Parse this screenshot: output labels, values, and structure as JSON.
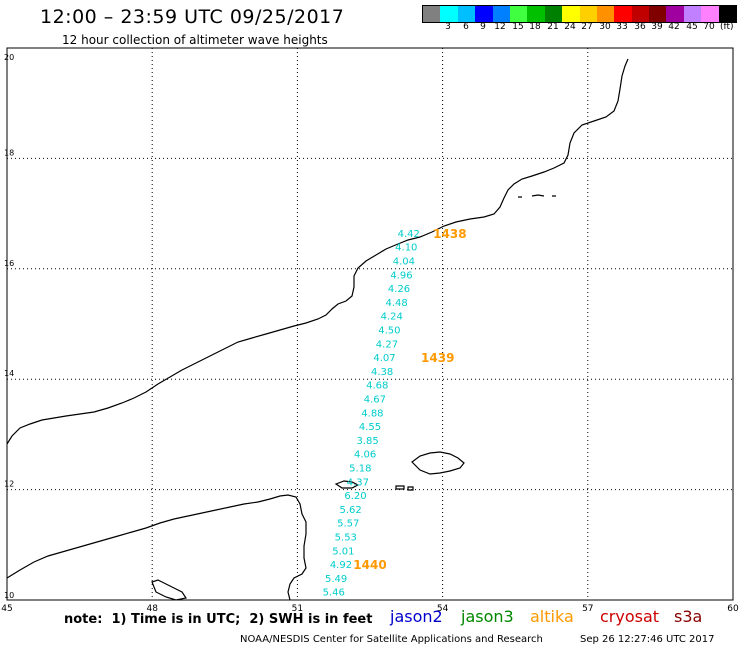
{
  "header": {
    "title": "12:00 – 23:59 UTC 09/25/2017",
    "subtitle": "12 hour collection of altimeter wave heights"
  },
  "scale": {
    "colors": [
      "#808080",
      "#00ffff",
      "#00bfff",
      "#0000ff",
      "#0080ff",
      "#40ff40",
      "#00c000",
      "#008000",
      "#ffff00",
      "#ffd000",
      "#ff9000",
      "#ff0000",
      "#c00000",
      "#800000",
      "#a000a0",
      "#c080ff",
      "#ff80ff",
      "#000000"
    ],
    "labels": [
      "3",
      "6",
      "9",
      "12",
      "15",
      "18",
      "21",
      "24",
      "27",
      "30",
      "33",
      "36",
      "39",
      "42",
      "45",
      "70"
    ],
    "unit": "(ft)"
  },
  "map": {
    "lon_ticks": [
      "45",
      "48",
      "51",
      "54",
      "57",
      "60"
    ],
    "lat_ticks": [
      "10",
      "12",
      "14",
      "16",
      "18",
      "20"
    ],
    "wave_color": "#00cccc",
    "time_color": "#ff9900",
    "wave_heights": [
      {
        "value": "4.42",
        "lon": 53.3,
        "lat": 16.65
      },
      {
        "value": "4.10",
        "lon": 53.25,
        "lat": 16.4
      },
      {
        "value": "4.04",
        "lon": 53.2,
        "lat": 16.15
      },
      {
        "value": "4.96",
        "lon": 53.15,
        "lat": 15.9
      },
      {
        "value": "4.26",
        "lon": 53.1,
        "lat": 15.65
      },
      {
        "value": "4.48",
        "lon": 53.05,
        "lat": 15.4
      },
      {
        "value": "4.24",
        "lon": 52.95,
        "lat": 15.15
      },
      {
        "value": "4.50",
        "lon": 52.9,
        "lat": 14.9
      },
      {
        "value": "4.27",
        "lon": 52.85,
        "lat": 14.65
      },
      {
        "value": "4.07",
        "lon": 52.8,
        "lat": 14.4
      },
      {
        "value": "4.38",
        "lon": 52.75,
        "lat": 14.15
      },
      {
        "value": "4.68",
        "lon": 52.65,
        "lat": 13.9
      },
      {
        "value": "4.67",
        "lon": 52.6,
        "lat": 13.65
      },
      {
        "value": "4.88",
        "lon": 52.55,
        "lat": 13.4
      },
      {
        "value": "4.55",
        "lon": 52.5,
        "lat": 13.15
      },
      {
        "value": "3.85",
        "lon": 52.45,
        "lat": 12.9
      },
      {
        "value": "4.06",
        "lon": 52.4,
        "lat": 12.65
      },
      {
        "value": "5.18",
        "lon": 52.3,
        "lat": 12.4
      },
      {
        "value": "4.37",
        "lon": 52.25,
        "lat": 12.15
      },
      {
        "value": "6.20",
        "lon": 52.2,
        "lat": 11.9
      },
      {
        "value": "5.62",
        "lon": 52.1,
        "lat": 11.65
      },
      {
        "value": "5.57",
        "lon": 52.05,
        "lat": 11.4
      },
      {
        "value": "5.53",
        "lon": 52.0,
        "lat": 11.15
      },
      {
        "value": "5.01",
        "lon": 51.95,
        "lat": 10.9
      },
      {
        "value": "4.92",
        "lon": 51.9,
        "lat": 10.65
      },
      {
        "value": "5.49",
        "lon": 51.8,
        "lat": 10.4
      },
      {
        "value": "5.46",
        "lon": 51.75,
        "lat": 10.15
      }
    ],
    "pass_times": [
      {
        "value": "1438",
        "lon": 54.15,
        "lat": 16.65
      },
      {
        "value": "1439",
        "lon": 53.9,
        "lat": 14.4
      },
      {
        "value": "1440",
        "lon": 52.5,
        "lat": 10.65
      }
    ]
  },
  "footer": {
    "note": "note:  1) Time is in UTC;  2) SWH is in feet",
    "satellites": [
      {
        "name": "jason2",
        "color": "#0000cc"
      },
      {
        "name": "jason3",
        "color": "#008800"
      },
      {
        "name": "altika",
        "color": "#ff9900"
      },
      {
        "name": "cryosat",
        "color": "#cc0000"
      },
      {
        "name": "s3a",
        "color": "#880000"
      }
    ],
    "credit": "NOAA/NESDIS Center for Satellite Applications and Research",
    "timestamp": "Sep 26 12:27:46 UTC 2017"
  }
}
